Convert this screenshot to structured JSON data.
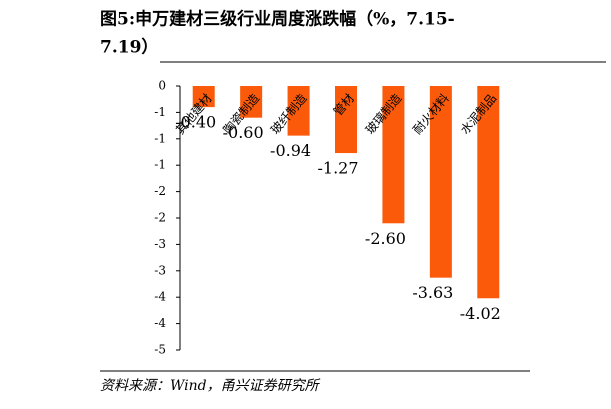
{
  "chart_data": {
    "type": "bar",
    "title": [
      "图5:申万建材三级行业周度涨跌幅（%，7.15-",
      "7.19）"
    ],
    "categories": [
      "其他建材",
      "陶瓷制造",
      "玻纤制造",
      "管材",
      "玻璃制造",
      "耐火材料",
      "水泥制品"
    ],
    "values": [
      -0.4,
      -0.6,
      -0.94,
      -1.27,
      -2.6,
      -3.63,
      -4.02
    ],
    "value_labels": [
      "-0.40",
      "-0.60",
      "-0.94",
      "-1.27",
      "-2.60",
      "-3.63",
      "-4.02"
    ],
    "color": "#fa5a0a",
    "ylim": [
      -5,
      0
    ],
    "yticks": [
      0,
      {
        "value": -0.5,
        "label": "-1"
      },
      {
        "value": -1,
        "label": "-1"
      },
      {
        "value": -1.5,
        "label": "-1"
      },
      {
        "value": -2,
        "label": "-2"
      },
      {
        "value": -2.5,
        "label": "-2"
      },
      {
        "value": -3,
        "label": "-3"
      },
      {
        "value": -3.5,
        "label": "-3"
      },
      {
        "value": -4,
        "label": "-4"
      },
      {
        "value": -4.5,
        "label": "-4"
      },
      {
        "value": -5,
        "label": "-5"
      }
    ],
    "source": "资料来源：Wind，甬兴证券研究所"
  }
}
